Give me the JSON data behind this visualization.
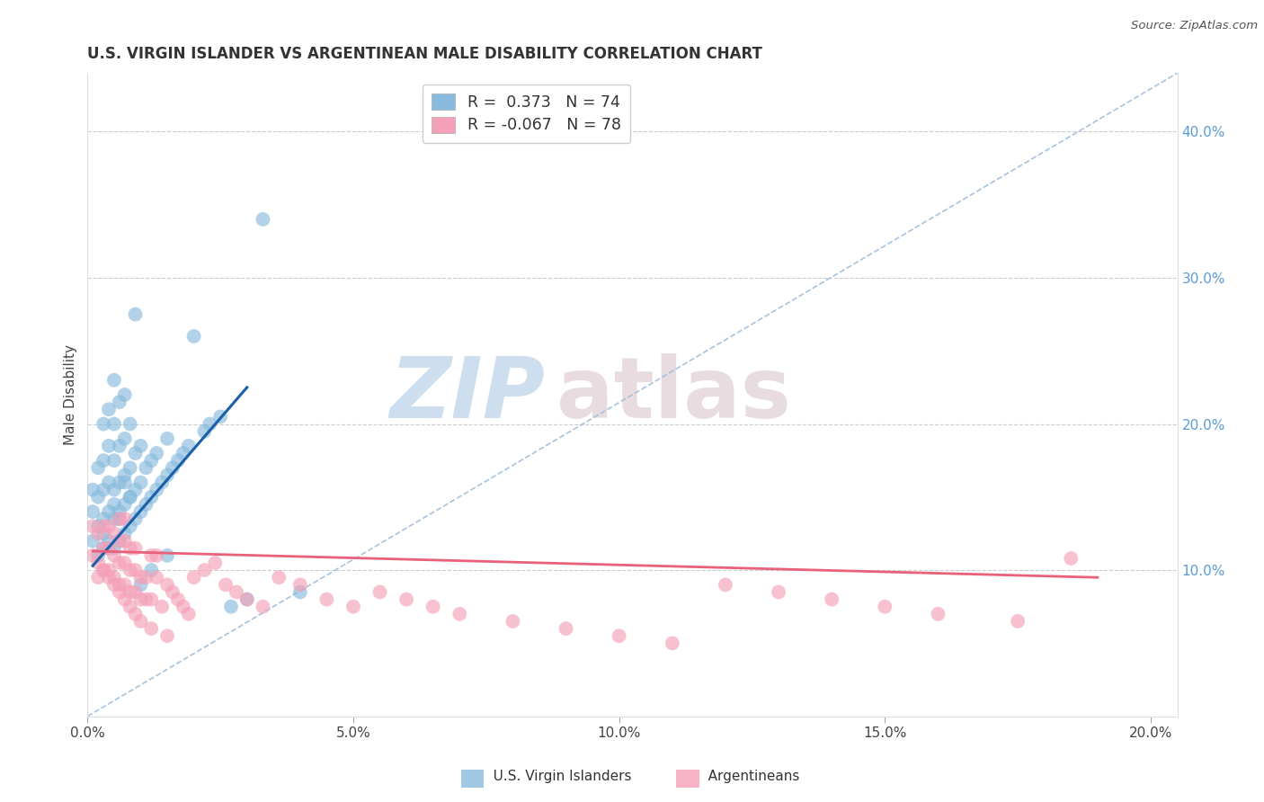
{
  "title": "U.S. VIRGIN ISLANDER VS ARGENTINEAN MALE DISABILITY CORRELATION CHART",
  "source": "Source: ZipAtlas.com",
  "ylabel": "Male Disability",
  "xlim": [
    0.0,
    0.205
  ],
  "ylim": [
    0.0,
    0.44
  ],
  "xticks": [
    0.0,
    0.05,
    0.1,
    0.15,
    0.2
  ],
  "xtick_labels": [
    "0.0%",
    "5.0%",
    "10.0%",
    "15.0%",
    "20.0%"
  ],
  "yticks_right": [
    0.1,
    0.2,
    0.3,
    0.4
  ],
  "ytick_labels_right": [
    "10.0%",
    "20.0%",
    "30.0%",
    "40.0%"
  ],
  "blue_color": "#88bbdd",
  "pink_color": "#f4a0b8",
  "blue_line_color": "#1a5fa8",
  "pink_line_color": "#e8607a",
  "ref_line_color": "#a0bcd8",
  "r_blue": 0.373,
  "n_blue": 74,
  "r_pink": -0.067,
  "n_pink": 78,
  "blue_scatter_x": [
    0.001,
    0.001,
    0.001,
    0.002,
    0.002,
    0.002,
    0.002,
    0.003,
    0.003,
    0.003,
    0.003,
    0.003,
    0.004,
    0.004,
    0.004,
    0.004,
    0.004,
    0.005,
    0.005,
    0.005,
    0.005,
    0.005,
    0.005,
    0.006,
    0.006,
    0.006,
    0.006,
    0.006,
    0.007,
    0.007,
    0.007,
    0.007,
    0.007,
    0.008,
    0.008,
    0.008,
    0.008,
    0.009,
    0.009,
    0.009,
    0.01,
    0.01,
    0.01,
    0.011,
    0.011,
    0.012,
    0.012,
    0.013,
    0.013,
    0.014,
    0.015,
    0.015,
    0.016,
    0.017,
    0.018,
    0.019,
    0.02,
    0.022,
    0.023,
    0.025,
    0.027,
    0.03,
    0.033,
    0.04,
    0.003,
    0.004,
    0.005,
    0.006,
    0.007,
    0.008,
    0.009,
    0.01,
    0.012,
    0.015
  ],
  "blue_scatter_y": [
    0.12,
    0.14,
    0.155,
    0.11,
    0.13,
    0.15,
    0.17,
    0.115,
    0.135,
    0.155,
    0.175,
    0.2,
    0.12,
    0.14,
    0.16,
    0.185,
    0.21,
    0.115,
    0.135,
    0.155,
    0.175,
    0.2,
    0.23,
    0.12,
    0.14,
    0.16,
    0.185,
    0.215,
    0.125,
    0.145,
    0.165,
    0.19,
    0.22,
    0.13,
    0.15,
    0.17,
    0.2,
    0.135,
    0.155,
    0.18,
    0.14,
    0.16,
    0.185,
    0.145,
    0.17,
    0.15,
    0.175,
    0.155,
    0.18,
    0.16,
    0.165,
    0.19,
    0.17,
    0.175,
    0.18,
    0.185,
    0.26,
    0.195,
    0.2,
    0.205,
    0.075,
    0.08,
    0.34,
    0.085,
    0.125,
    0.115,
    0.145,
    0.135,
    0.16,
    0.15,
    0.275,
    0.09,
    0.1,
    0.11
  ],
  "pink_scatter_x": [
    0.001,
    0.001,
    0.002,
    0.002,
    0.003,
    0.003,
    0.003,
    0.004,
    0.004,
    0.004,
    0.005,
    0.005,
    0.005,
    0.006,
    0.006,
    0.006,
    0.006,
    0.007,
    0.007,
    0.007,
    0.007,
    0.008,
    0.008,
    0.008,
    0.009,
    0.009,
    0.009,
    0.01,
    0.01,
    0.011,
    0.011,
    0.012,
    0.012,
    0.013,
    0.013,
    0.014,
    0.015,
    0.016,
    0.017,
    0.018,
    0.019,
    0.02,
    0.022,
    0.024,
    0.026,
    0.028,
    0.03,
    0.033,
    0.036,
    0.04,
    0.045,
    0.05,
    0.055,
    0.06,
    0.065,
    0.07,
    0.08,
    0.09,
    0.1,
    0.11,
    0.12,
    0.13,
    0.14,
    0.15,
    0.16,
    0.175,
    0.002,
    0.003,
    0.004,
    0.005,
    0.006,
    0.007,
    0.008,
    0.009,
    0.01,
    0.012,
    0.015,
    0.185
  ],
  "pink_scatter_y": [
    0.11,
    0.13,
    0.105,
    0.125,
    0.1,
    0.115,
    0.13,
    0.1,
    0.115,
    0.13,
    0.095,
    0.11,
    0.125,
    0.09,
    0.105,
    0.12,
    0.135,
    0.09,
    0.105,
    0.12,
    0.135,
    0.085,
    0.1,
    0.115,
    0.085,
    0.1,
    0.115,
    0.08,
    0.095,
    0.08,
    0.095,
    0.11,
    0.08,
    0.095,
    0.11,
    0.075,
    0.09,
    0.085,
    0.08,
    0.075,
    0.07,
    0.095,
    0.1,
    0.105,
    0.09,
    0.085,
    0.08,
    0.075,
    0.095,
    0.09,
    0.08,
    0.075,
    0.085,
    0.08,
    0.075,
    0.07,
    0.065,
    0.06,
    0.055,
    0.05,
    0.09,
    0.085,
    0.08,
    0.075,
    0.07,
    0.065,
    0.095,
    0.1,
    0.095,
    0.09,
    0.085,
    0.08,
    0.075,
    0.07,
    0.065,
    0.06,
    0.055,
    0.108
  ],
  "blue_line_x": [
    0.001,
    0.03
  ],
  "blue_line_y": [
    0.103,
    0.225
  ],
  "pink_line_x": [
    0.001,
    0.19
  ],
  "pink_line_y": [
    0.113,
    0.095
  ]
}
